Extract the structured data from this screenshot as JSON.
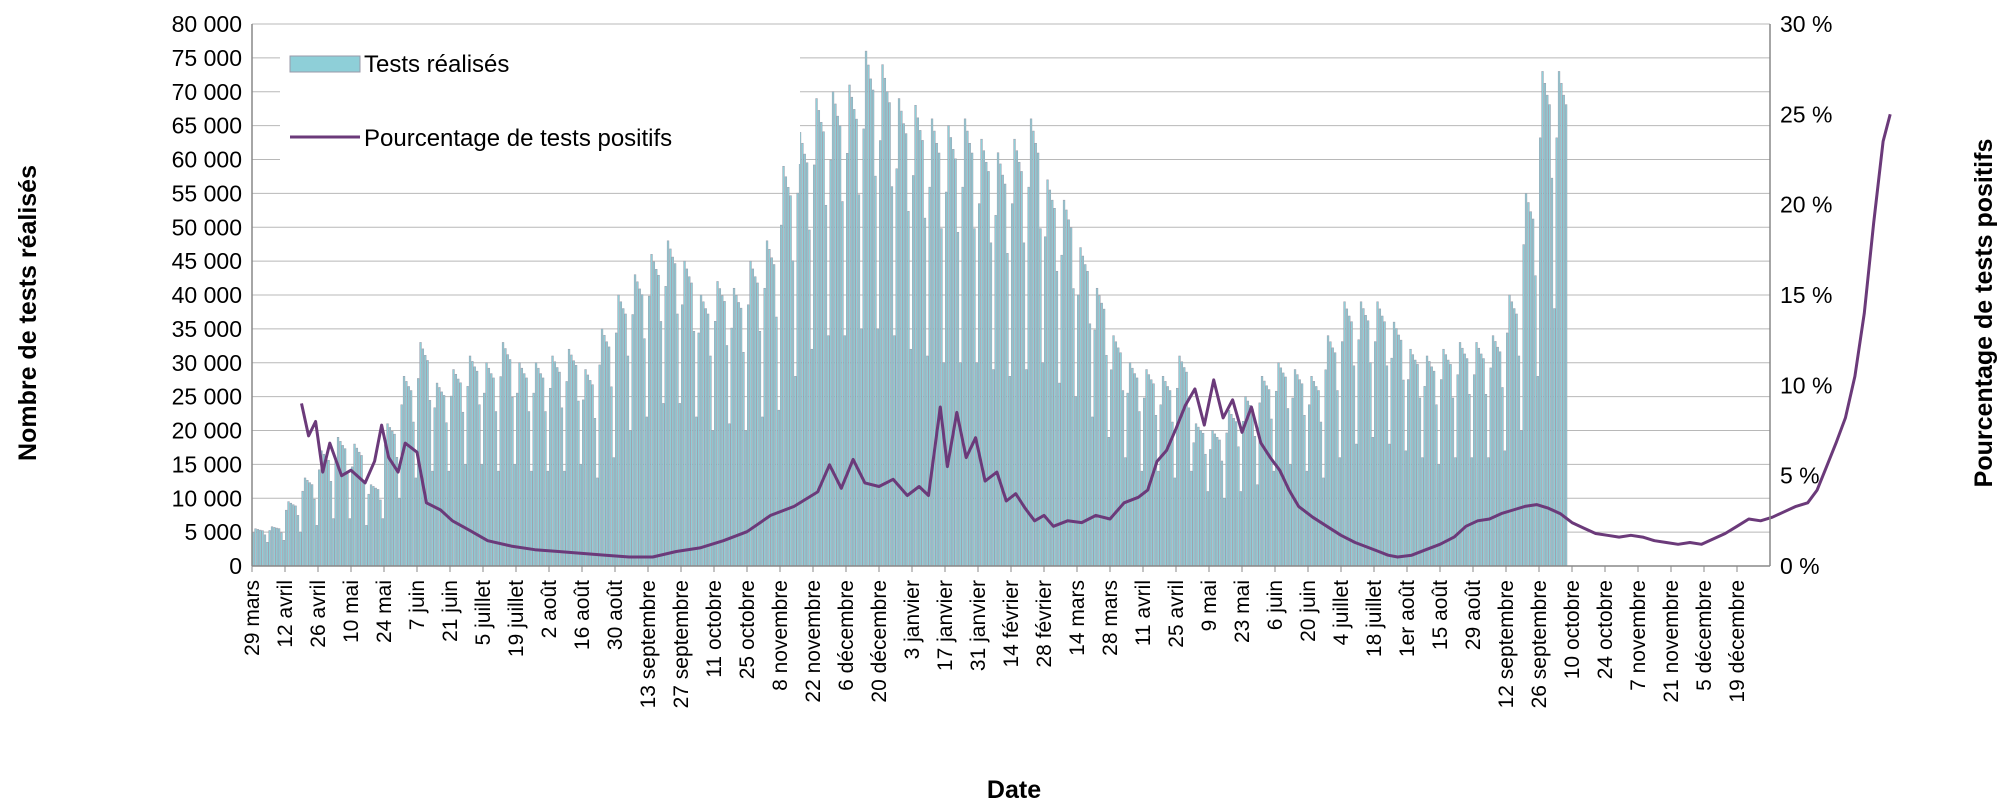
{
  "chart_data": {
    "type": "bar+line",
    "title": "",
    "xlabel": "Date",
    "ylabel_left": "Nombre de tests réalisés",
    "ylabel_right": "Pourcentage de tests positifs",
    "ylim_left": [
      0,
      80000
    ],
    "ylim_right": [
      0,
      30
    ],
    "yticks_left": [
      "0",
      "5 000",
      "10 000",
      "15 000",
      "20 000",
      "25 000",
      "30 000",
      "35 000",
      "40 000",
      "45 000",
      "50 000",
      "55 000",
      "60 000",
      "65 000",
      "70 000",
      "75 000",
      "80 000"
    ],
    "yticks_right": [
      "0 %",
      "5 %",
      "10 %",
      "15 %",
      "20 %",
      "25 %",
      "30 %"
    ],
    "legend_position": "top-left",
    "grid": "horizontal",
    "colors": {
      "bars": "#8ecfd8",
      "bar_edge": "#9a9aa8",
      "line": "#6b3a7a",
      "grid": "#b8b8b8"
    },
    "x_labels": [
      "29 mars",
      "12 avril",
      "26 avril",
      "10 mai",
      "24 mai",
      "7 juin",
      "21 juin",
      "5 juillet",
      "19 juillet",
      "2 août",
      "16 août",
      "30 août",
      "13 septembre",
      "27 septembre",
      "11 octobre",
      "25 octobre",
      "8 novembre",
      "22 novembre",
      "6 décembre",
      "20 décembre",
      "3 janvier",
      "17 janvier",
      "31 janvier",
      "14 février",
      "28 février",
      "14 mars",
      "28 mars",
      "11 avril",
      "25 avril",
      "9 mai",
      "23 mai",
      "6 juin",
      "20 juin",
      "4 juillet",
      "18 juillet",
      "1er août",
      "15 août",
      "29 août",
      "12 septembre",
      "26 septembre",
      "10 octobre",
      "24 octobre",
      "7 novembre",
      "21 novembre",
      "5 décembre",
      "19 décembre"
    ],
    "series": [
      {
        "name": "Tests réalisés",
        "kind": "bar",
        "axis": "left",
        "weekly_peak": [
          5500,
          5800,
          9500,
          13000,
          17000,
          19000,
          18000,
          12000,
          21000,
          28000,
          33000,
          27000,
          29000,
          31000,
          30000,
          33000,
          30000,
          30000,
          31000,
          32000,
          29000,
          35000,
          40000,
          43000,
          46000,
          48000,
          45000,
          40000,
          42000,
          41000,
          45000,
          48000,
          59000,
          64000,
          69000,
          70000,
          71000,
          76000,
          74000,
          69000,
          68000,
          66000,
          65000,
          66000,
          63000,
          61000,
          63000,
          66000,
          57000,
          54000,
          47000,
          41000,
          34000,
          30000,
          29000,
          28000,
          31000,
          21000,
          20000,
          23000,
          25000,
          28000,
          30000,
          29000,
          28000,
          34000,
          39000,
          39000,
          39000,
          36000,
          32000,
          31000,
          32000,
          33000,
          33000,
          34000,
          40000,
          55000,
          73000
        ],
        "weekly_low": [
          3500,
          3800,
          5000,
          6000,
          7000,
          7000,
          6000,
          7000,
          10000,
          13000,
          14000,
          14000,
          15000,
          15000,
          14000,
          15000,
          14000,
          14000,
          14000,
          15000,
          13000,
          16000,
          20000,
          22000,
          24000,
          24000,
          22000,
          20000,
          21000,
          20000,
          22000,
          23000,
          28000,
          32000,
          34000,
          34000,
          35000,
          35000,
          34000,
          32000,
          31000,
          30000,
          30000,
          30000,
          29000,
          28000,
          29000,
          30000,
          27000,
          25000,
          22000,
          19000,
          16000,
          14000,
          14000,
          13000,
          14000,
          11000,
          10000,
          11000,
          12000,
          14000,
          15000,
          14000,
          13000,
          16000,
          18000,
          19000,
          18000,
          17000,
          16000,
          15000,
          16000,
          16000,
          16000,
          17000,
          20000,
          28000,
          38000
        ]
      },
      {
        "name": "Pourcentage de tests positifs",
        "kind": "line",
        "axis": "right",
        "start_day": 21,
        "points": [
          [
            21,
            9.0
          ],
          [
            24,
            7.2
          ],
          [
            27,
            8.0
          ],
          [
            30,
            5.2
          ],
          [
            33,
            6.8
          ],
          [
            38,
            5.0
          ],
          [
            42,
            5.3
          ],
          [
            48,
            4.6
          ],
          [
            52,
            5.8
          ],
          [
            55,
            7.8
          ],
          [
            58,
            6.0
          ],
          [
            62,
            5.2
          ],
          [
            65,
            6.8
          ],
          [
            70,
            6.3
          ],
          [
            74,
            3.5
          ],
          [
            80,
            3.1
          ],
          [
            85,
            2.5
          ],
          [
            92,
            2.0
          ],
          [
            100,
            1.4
          ],
          [
            110,
            1.1
          ],
          [
            120,
            0.9
          ],
          [
            130,
            0.8
          ],
          [
            140,
            0.7
          ],
          [
            150,
            0.6
          ],
          [
            160,
            0.5
          ],
          [
            170,
            0.5
          ],
          [
            180,
            0.8
          ],
          [
            190,
            1.0
          ],
          [
            200,
            1.4
          ],
          [
            210,
            1.9
          ],
          [
            220,
            2.8
          ],
          [
            230,
            3.3
          ],
          [
            240,
            4.1
          ],
          [
            245,
            5.6
          ],
          [
            250,
            4.3
          ],
          [
            255,
            5.9
          ],
          [
            260,
            4.6
          ],
          [
            266,
            4.4
          ],
          [
            272,
            4.8
          ],
          [
            278,
            3.9
          ],
          [
            283,
            4.4
          ],
          [
            287,
            3.9
          ],
          [
            292,
            8.8
          ],
          [
            295,
            5.5
          ],
          [
            299,
            8.5
          ],
          [
            303,
            6.0
          ],
          [
            307,
            7.1
          ],
          [
            311,
            4.7
          ],
          [
            316,
            5.2
          ],
          [
            320,
            3.6
          ],
          [
            324,
            4.0
          ],
          [
            328,
            3.2
          ],
          [
            332,
            2.5
          ],
          [
            336,
            2.8
          ],
          [
            340,
            2.2
          ],
          [
            346,
            2.5
          ],
          [
            352,
            2.4
          ],
          [
            358,
            2.8
          ],
          [
            364,
            2.6
          ],
          [
            370,
            3.5
          ],
          [
            376,
            3.8
          ],
          [
            380,
            4.2
          ],
          [
            384,
            5.8
          ],
          [
            388,
            6.4
          ],
          [
            392,
            7.6
          ],
          [
            396,
            8.9
          ],
          [
            400,
            9.8
          ],
          [
            404,
            7.8
          ],
          [
            408,
            10.3
          ],
          [
            412,
            8.2
          ],
          [
            416,
            9.2
          ],
          [
            420,
            7.4
          ],
          [
            424,
            8.8
          ],
          [
            428,
            6.8
          ],
          [
            432,
            6.0
          ],
          [
            436,
            5.3
          ],
          [
            440,
            4.2
          ],
          [
            444,
            3.3
          ],
          [
            450,
            2.7
          ],
          [
            456,
            2.2
          ],
          [
            462,
            1.7
          ],
          [
            468,
            1.3
          ],
          [
            474,
            1.0
          ],
          [
            478,
            0.8
          ],
          [
            482,
            0.6
          ],
          [
            486,
            0.5
          ],
          [
            492,
            0.6
          ],
          [
            498,
            0.9
          ],
          [
            504,
            1.2
          ],
          [
            510,
            1.6
          ],
          [
            515,
            2.2
          ],
          [
            520,
            2.5
          ],
          [
            525,
            2.6
          ],
          [
            530,
            2.9
          ],
          [
            535,
            3.1
          ],
          [
            540,
            3.3
          ],
          [
            545,
            3.4
          ],
          [
            550,
            3.2
          ],
          [
            555,
            2.9
          ],
          [
            560,
            2.4
          ],
          [
            565,
            2.1
          ],
          [
            570,
            1.8
          ],
          [
            575,
            1.7
          ],
          [
            580,
            1.6
          ],
          [
            585,
            1.7
          ],
          [
            590,
            1.6
          ],
          [
            595,
            1.4
          ],
          [
            600,
            1.3
          ],
          [
            605,
            1.2
          ],
          [
            610,
            1.3
          ],
          [
            615,
            1.2
          ],
          [
            620,
            1.5
          ],
          [
            625,
            1.8
          ],
          [
            630,
            2.2
          ],
          [
            635,
            2.6
          ],
          [
            640,
            2.5
          ],
          [
            645,
            2.7
          ],
          [
            650,
            3.0
          ],
          [
            655,
            3.3
          ],
          [
            660,
            3.5
          ],
          [
            664,
            4.2
          ],
          [
            668,
            5.5
          ],
          [
            672,
            6.8
          ],
          [
            676,
            8.2
          ],
          [
            680,
            10.5
          ],
          [
            684,
            14.0
          ],
          [
            688,
            19.0
          ],
          [
            692,
            23.5
          ],
          [
            695,
            25.0
          ]
        ]
      }
    ]
  }
}
